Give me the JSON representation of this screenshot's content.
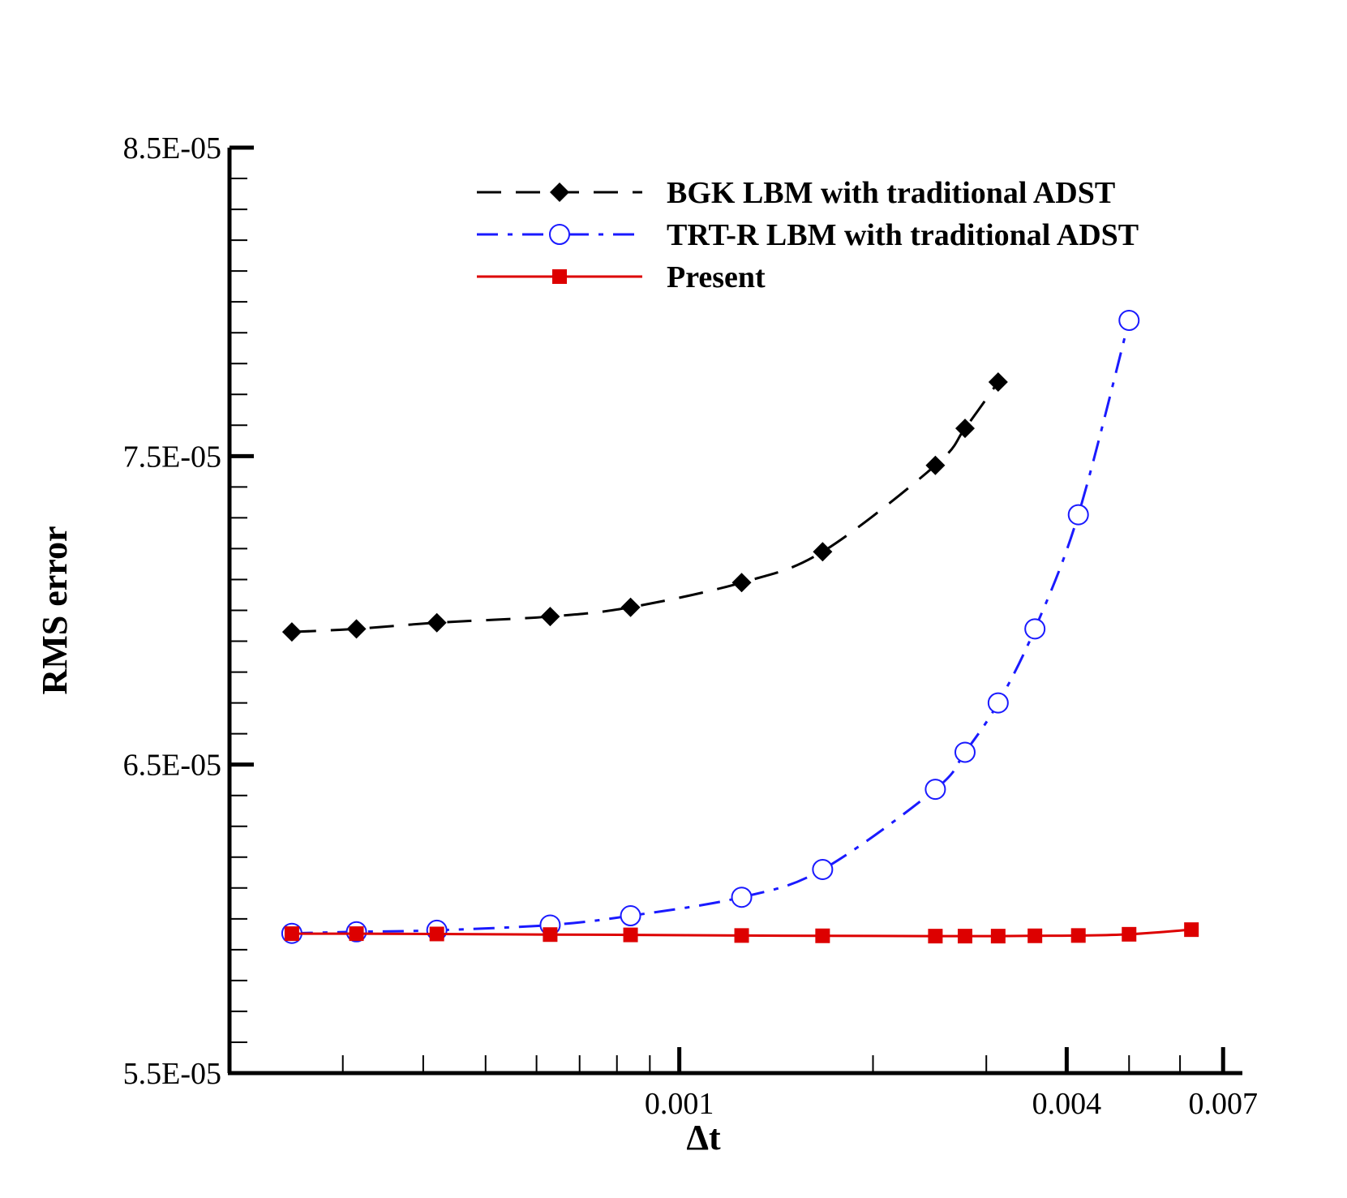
{
  "chart_data": {
    "type": "line",
    "title": "",
    "xlabel": "Δt",
    "ylabel": "RMS error",
    "xscale": "log",
    "xlim": [
      0.0002,
      0.0075
    ],
    "ylim": [
      5.5e-05,
      8.5e-05
    ],
    "yticks": [
      {
        "value": 8.5e-05,
        "label": "8.5E-05"
      },
      {
        "value": 7.5e-05,
        "label": "7.5E-05"
      },
      {
        "value": 6.5e-05,
        "label": "6.5E-05"
      },
      {
        "value": 5.5e-05,
        "label": "5.5E-05"
      }
    ],
    "xticks": [
      {
        "value": 0.001,
        "label": "0.001"
      },
      {
        "value": 0.004,
        "label": "0.004"
      },
      {
        "value": 0.007,
        "label": "0.007"
      }
    ],
    "legend_position": "top-right",
    "series": [
      {
        "name": "BGK LBM with traditional ADST",
        "color": "#000000",
        "line_style": "dashed",
        "marker": "filled-diamond",
        "x": [
          0.00025,
          0.000315,
          0.00042,
          0.00063,
          0.00084,
          0.00125,
          0.00167,
          0.0025,
          0.00278,
          0.00313
        ],
        "y": [
          6.93e-05,
          6.94e-05,
          6.96e-05,
          6.98e-05,
          7.01e-05,
          7.09e-05,
          7.19e-05,
          7.47e-05,
          7.59e-05,
          7.74e-05
        ]
      },
      {
        "name": "TRT-R LBM with traditional ADST",
        "color": "#1a1aff",
        "line_style": "dash-dot",
        "marker": "open-circle",
        "x": [
          0.00025,
          0.000315,
          0.00042,
          0.00063,
          0.00084,
          0.00125,
          0.00167,
          0.0025,
          0.00278,
          0.00313,
          0.00357,
          0.00417,
          0.005
        ],
        "y": [
          5.953e-05,
          5.958e-05,
          5.963e-05,
          5.98e-05,
          6.01e-05,
          6.07e-05,
          6.16e-05,
          6.42e-05,
          6.54e-05,
          6.7e-05,
          6.94e-05,
          7.31e-05,
          7.94e-05
        ]
      },
      {
        "name": "Present",
        "color": "#dd0000",
        "line_style": "solid",
        "marker": "filled-square",
        "x": [
          0.00025,
          0.000315,
          0.00042,
          0.00063,
          0.00084,
          0.00125,
          0.00167,
          0.0025,
          0.00278,
          0.00313,
          0.00357,
          0.00417,
          0.005,
          0.00625
        ],
        "y": [
          5.952e-05,
          5.952e-05,
          5.951e-05,
          5.949e-05,
          5.948e-05,
          5.946e-05,
          5.945e-05,
          5.944e-05,
          5.944e-05,
          5.944e-05,
          5.945e-05,
          5.946e-05,
          5.95e-05,
          5.965e-05
        ]
      }
    ]
  }
}
